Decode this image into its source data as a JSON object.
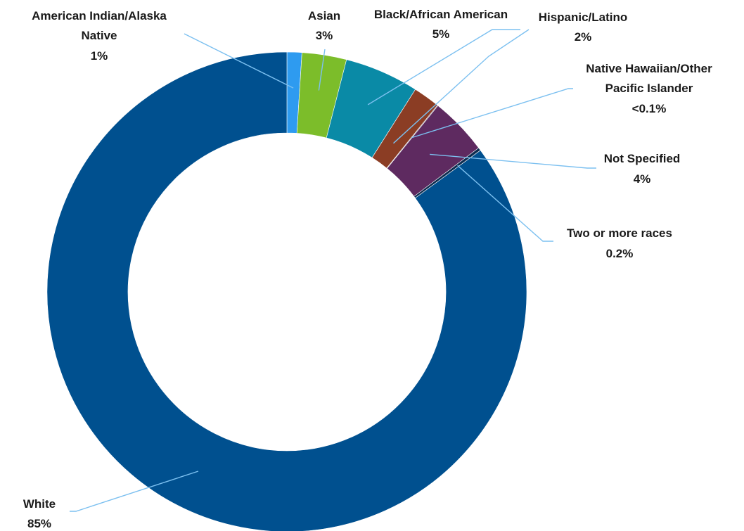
{
  "chart_data": {
    "type": "pie",
    "donut": true,
    "slices": [
      {
        "label": "American Indian/Alaska Native",
        "value_label": "1%",
        "value": 1.0,
        "color": "#2e9bf0"
      },
      {
        "label": "Asian",
        "value_label": "3%",
        "value": 3.0,
        "color": "#7cbd2a"
      },
      {
        "label": "Black/African American",
        "value_label": "5%",
        "value": 5.0,
        "color": "#0a8aa6"
      },
      {
        "label": "Hispanic/Latino",
        "value_label": "2%",
        "value": 1.8,
        "color": "#8b3d24"
      },
      {
        "label": "Native Hawaiian/Other Pacific Islander",
        "value_label": "<0.1%",
        "value": 0.05,
        "color": "#3a2a4a"
      },
      {
        "label": "Not Specified",
        "value_label": "4%",
        "value": 3.9,
        "color": "#5e2a60"
      },
      {
        "label": "Two or more races",
        "value_label": "0.2%",
        "value": 0.2,
        "color": "#0d2c4f"
      },
      {
        "label": "White",
        "value_label": "85%",
        "value": 85.05,
        "color": "#00508f"
      }
    ],
    "leader_color": "#7cc0f0",
    "legend": "none"
  }
}
